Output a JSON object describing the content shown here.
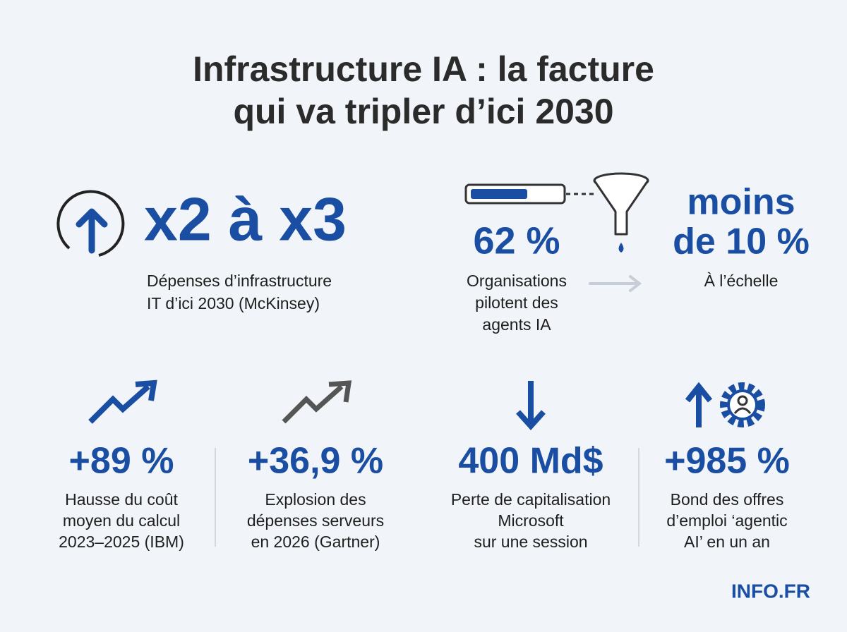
{
  "title": [
    "Infrastructure IA : la facture",
    "qui va tripler d’ici 2030"
  ],
  "top": [
    {
      "figure": [
        "x2 à x3"
      ],
      "caption": [
        "Dépenses d’infrastructure",
        "IT d’ici 2030 (McKinsey)"
      ]
    },
    {
      "figure": [
        "62 %"
      ],
      "caption": [
        "Organisations",
        "pilotent des",
        "agents IA"
      ]
    },
    {
      "figure": [
        "moins",
        "de 10 %"
      ],
      "caption": [
        "À l’échelle"
      ]
    }
  ],
  "stats": [
    {
      "figure": "+89 %",
      "caption": [
        "Hausse du coût",
        "moyen du calcul",
        "2023–2025 (IBM)"
      ]
    },
    {
      "figure": "+36,9 %",
      "caption": [
        "Explosion des",
        "dépenses serveurs",
        "en 2026 (Gartner)"
      ]
    },
    {
      "figure": "400 Md$",
      "caption": [
        "Perte de capitalisation",
        "Microsoft",
        "sur une session"
      ]
    },
    {
      "figure": "+985 %",
      "caption": [
        "Bond des offres",
        "d’emploi ‘agentic",
        "AI’ en un an"
      ]
    }
  ],
  "brand": "INFO.FR"
}
